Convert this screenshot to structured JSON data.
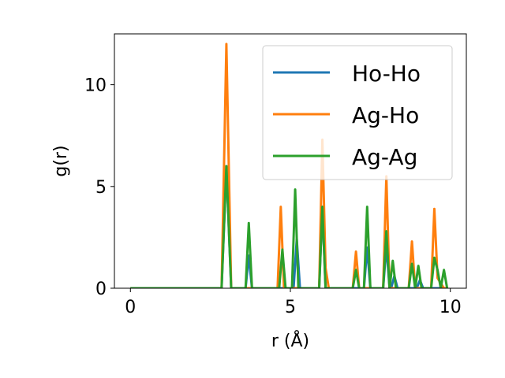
{
  "chart_data": {
    "type": "line",
    "title": "",
    "xlabel": "r (Å)",
    "ylabel": "g(r)",
    "xlim": [
      -0.5,
      10.5
    ],
    "ylim": [
      0,
      12.5
    ],
    "xticks": [
      0,
      5,
      10
    ],
    "yticks": [
      0,
      5,
      10
    ],
    "legend_position": "top-right",
    "series": [
      {
        "name": "Ho-Ho",
        "color": "#1f77b4",
        "x": [
          0,
          2.85,
          3.0,
          3.15,
          3.6,
          3.7,
          3.8,
          5.1,
          5.2,
          5.3,
          5.9,
          6.0,
          6.1,
          7.3,
          7.4,
          7.5,
          7.9,
          8.0,
          8.1,
          8.15,
          8.25,
          8.35,
          8.95,
          9.05,
          9.15,
          9.8,
          9.9
        ],
        "y": [
          0,
          0,
          6.0,
          0,
          0,
          1.6,
          0,
          0,
          2.4,
          0,
          0,
          4.0,
          0,
          0,
          2.0,
          0,
          0,
          2.1,
          0,
          0,
          0.6,
          0,
          0,
          0.4,
          0,
          0,
          0
        ]
      },
      {
        "name": "Ag-Ho",
        "color": "#ff7f0e",
        "x": [
          0,
          2.85,
          3.0,
          3.15,
          4.6,
          4.7,
          4.8,
          5.9,
          6.0,
          6.1,
          6.2,
          6.95,
          7.05,
          7.15,
          7.9,
          8.0,
          8.1,
          8.7,
          8.8,
          8.9,
          9.4,
          9.5,
          9.6,
          9.8,
          9.9
        ],
        "y": [
          0,
          0,
          12.0,
          0,
          0,
          4.0,
          0,
          0,
          7.3,
          1.0,
          0,
          0,
          1.8,
          0,
          0,
          5.5,
          0,
          0,
          2.3,
          0,
          0,
          3.9,
          0.5,
          0,
          0
        ]
      },
      {
        "name": "Ag-Ag",
        "color": "#2ca02c",
        "x": [
          0,
          2.85,
          3.0,
          3.15,
          3.6,
          3.7,
          3.8,
          4.65,
          4.75,
          4.85,
          5.05,
          5.15,
          5.25,
          5.9,
          6.0,
          6.1,
          6.95,
          7.05,
          7.15,
          7.3,
          7.4,
          7.5,
          7.9,
          8.0,
          8.1,
          8.2,
          8.3,
          8.7,
          8.8,
          8.9,
          9.0,
          9.1,
          9.4,
          9.5,
          9.6,
          9.7,
          9.8,
          9.9
        ],
        "y": [
          0,
          0,
          6.0,
          0,
          0,
          3.2,
          0,
          0,
          1.9,
          0,
          0,
          4.85,
          0,
          0,
          4.0,
          0,
          0,
          0.9,
          0,
          0,
          4.0,
          0,
          0,
          2.8,
          0,
          1.35,
          0,
          0,
          1.2,
          0,
          1.1,
          0,
          0,
          1.5,
          0.9,
          0,
          0.9,
          0
        ]
      }
    ]
  }
}
